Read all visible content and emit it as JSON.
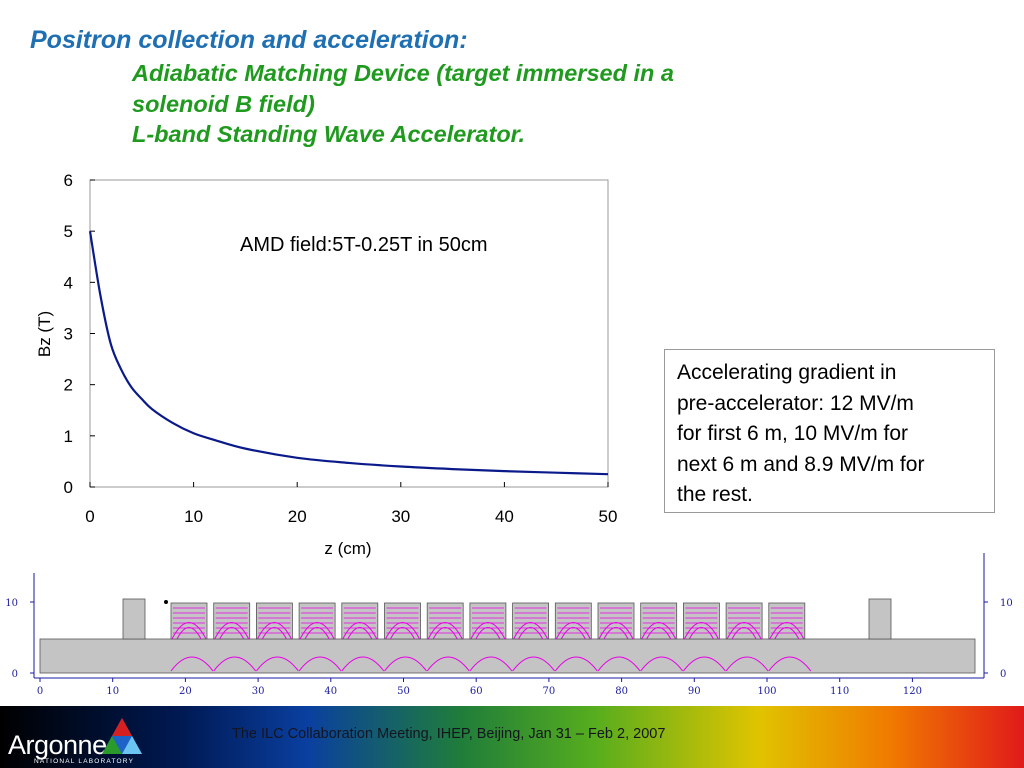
{
  "header": {
    "title": "Positron collection and acceleration:",
    "lines": [
      "Adiabatic Matching Device (target immersed in a",
      "solenoid B field)",
      "L-band Standing Wave Accelerator."
    ]
  },
  "chart_data": {
    "type": "line",
    "annotation": "AMD field:5T-0.25T in 50cm",
    "xlabel": "z (cm)",
    "ylabel": "Bz (T)",
    "xlim": [
      0,
      50
    ],
    "ylim": [
      0,
      6
    ],
    "xticks": [
      0,
      10,
      20,
      30,
      40,
      50
    ],
    "yticks": [
      0,
      1,
      2,
      3,
      4,
      5,
      6
    ],
    "series": [
      {
        "color": "#0b1a8a",
        "x": [
          0,
          1,
          2,
          3,
          4,
          5,
          6,
          8,
          10,
          12,
          15,
          20,
          25,
          30,
          35,
          40,
          45,
          50
        ],
        "y": [
          5.0,
          3.75,
          2.8,
          2.3,
          1.95,
          1.72,
          1.52,
          1.25,
          1.05,
          0.92,
          0.75,
          0.57,
          0.47,
          0.4,
          0.35,
          0.31,
          0.28,
          0.25
        ]
      }
    ]
  },
  "note": {
    "lines": [
      "Accelerating gradient in",
      "pre-accelerator: 12 MV/m",
      "for first 6 m, 10 MV/m for",
      "next 6 m and 8.9 MV/m for",
      "the rest."
    ]
  },
  "simulation": {
    "x_ticks": [
      "0",
      "10",
      "20",
      "30",
      "40",
      "50",
      "60",
      "70",
      "80",
      "90",
      "100",
      "110",
      "120"
    ],
    "left_ticks": [
      "10",
      "0"
    ],
    "right_ticks": [
      "10",
      "0"
    ],
    "colors": {
      "field_lines": "#e800e8",
      "body": "#c4c4c4"
    }
  },
  "footer": {
    "text": "The ILC Collaboration Meeting, IHEP, Beijing, Jan 31 – Feb 2, 2007",
    "logo_word": "Argonne",
    "logo_sub": "NATIONAL LABORATORY"
  }
}
